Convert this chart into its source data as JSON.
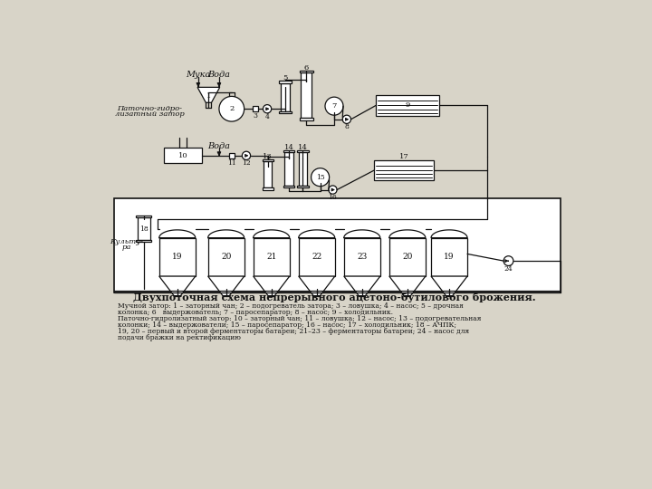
{
  "title": "Двухпоточная схема непрерывного ацетоно-бутилового брожения.",
  "leg1": "Мучной затор: 1 – заторный чан; 2 – подогреватель затора; 3 – ловушка; 4 – насос; 5 – дрочная",
  "leg2": "колонка; 6   выдержователь; 7 – паросепаратор; 8 – насос; 9 – холодильник.",
  "leg3": "Паточно-гидролизатный затор: 10 – заторный чан; 11 – ловушка; 12 – насос; 13 – подогревательная",
  "leg4": "колонки; 14 – выдержователи; 15 – паросепаратор; 16 – насос; 17 – холодильник; 18 – АЧПК;",
  "leg5": "19, 20 – первый и второй ферментаторы батареи; 21–23 – ферментаторы батареи; 24 – насос для",
  "leg6": "подачи бражки на ректификацию",
  "bg": "#d8d4c8",
  "lc": "#111111"
}
